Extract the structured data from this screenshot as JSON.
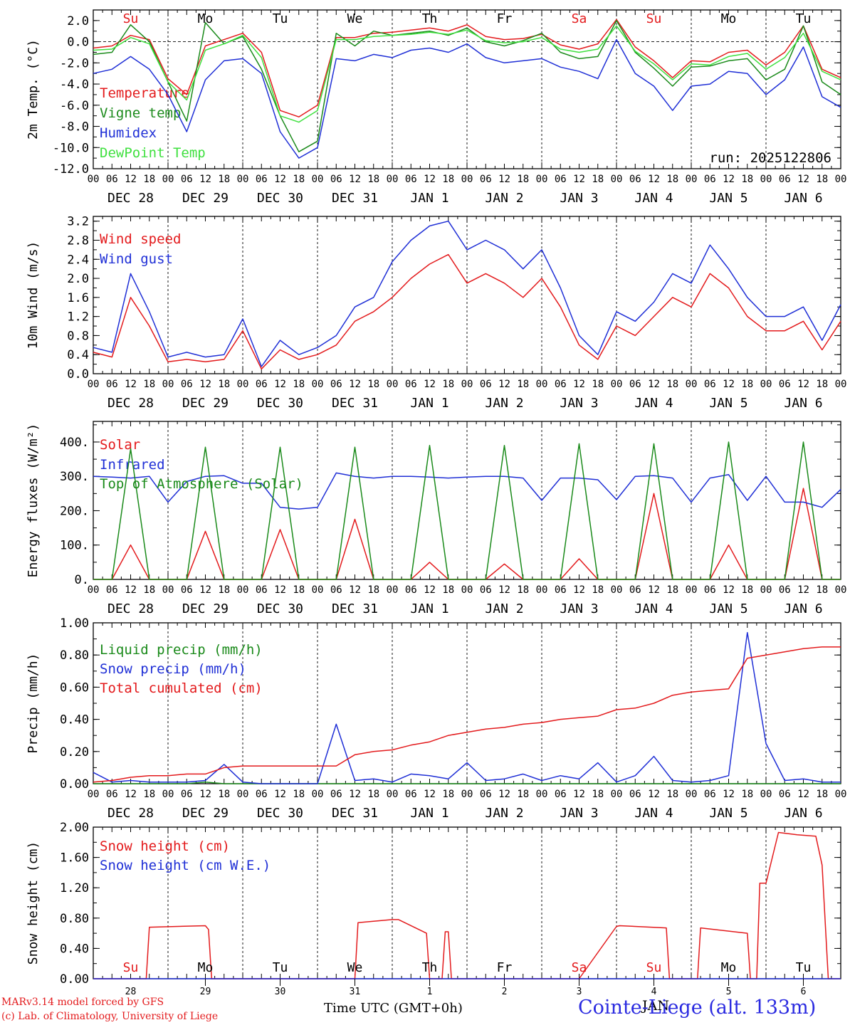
{
  "footer": {
    "credit_line1": "MARv3.14 model forced by GFS",
    "credit_line2": "(c) Lab. of Climatology, University of Liege",
    "xlabel": "Time UTC (GMT+0h)",
    "station": "Cointe-Liege (alt. 133m)",
    "bottom_month": "JAN"
  },
  "colors": {
    "red": "#e31a1c",
    "green": "#1a8a1a",
    "blue": "#1f2fd6",
    "lightgreen": "#3fe03f",
    "dark": "#000000"
  },
  "time_axis": {
    "hours_ticks": [
      "00",
      "06",
      "12",
      "18"
    ],
    "day_labels": [
      "DEC 28",
      "DEC 29",
      "DEC 30",
      "DEC 31",
      "JAN  1",
      "JAN  2",
      "JAN  3",
      "JAN  4",
      "JAN  5",
      "JAN  6"
    ],
    "weekdays": [
      "Su",
      "Mo",
      "Tu",
      "We",
      "Th",
      "Fr",
      "Sa",
      "Su",
      "Mo",
      "Tu"
    ],
    "weekday_red": [
      true,
      false,
      false,
      false,
      false,
      false,
      true,
      true,
      false,
      false
    ],
    "bottom_day_numbers": [
      "28",
      "29",
      "30",
      "31",
      "1",
      "2",
      "3",
      "4",
      "5",
      "6"
    ],
    "hours_span": 240
  },
  "chart_data": [
    {
      "type": "line",
      "ylabel": "2m Temp. (°C)",
      "ylim": [
        -12,
        3
      ],
      "yticks": [
        "2.0",
        "0.0",
        "-2.0",
        "-4.0",
        "-6.0",
        "-8.0",
        "-10.0",
        "-12.0"
      ],
      "annotation": "run: 2025122806",
      "x": [
        0,
        6,
        12,
        18,
        24,
        30,
        36,
        42,
        48,
        54,
        60,
        66,
        72,
        78,
        84,
        90,
        96,
        102,
        108,
        114,
        120,
        126,
        132,
        138,
        144,
        150,
        156,
        162,
        168,
        174,
        180,
        186,
        192,
        198,
        204,
        210,
        216,
        222,
        228,
        234,
        240
      ],
      "series": [
        {
          "name": "Temperature",
          "color": "#e31a1c",
          "values": [
            -0.6,
            -0.4,
            0.6,
            0.2,
            -3.5,
            -5,
            -0.4,
            0.2,
            0.8,
            -1,
            -6.5,
            -7.1,
            -6,
            0.4,
            0.4,
            0.8,
            0.9,
            1.1,
            1.3,
            1,
            1.6,
            0.5,
            0.2,
            0.3,
            0.7,
            -0.3,
            -0.7,
            -0.2,
            2.1,
            -0.5,
            -1.8,
            -3.4,
            -1.8,
            -1.9,
            -1,
            -0.8,
            -2.2,
            -1,
            1.5,
            -2.6,
            -3.4
          ]
        },
        {
          "name": "Vigne temp",
          "color": "#1a8a1a",
          "values": [
            -1.2,
            -1,
            1.6,
            0,
            -3.8,
            -7.5,
            1.8,
            -0.2,
            0.5,
            -2.6,
            -7,
            -10.4,
            -9.4,
            0.8,
            -0.4,
            1,
            0.6,
            0.8,
            1,
            0.6,
            1.3,
            0,
            -0.4,
            0.1,
            0.8,
            -1,
            -1.6,
            -1.4,
            2,
            -1,
            -2.5,
            -4.2,
            -2.4,
            -2.3,
            -1.8,
            -1.6,
            -3.6,
            -2.6,
            1.5,
            -3.8,
            -5
          ]
        },
        {
          "name": "Humidex",
          "color": "#1f2fd6",
          "values": [
            -3,
            -2.6,
            -1.4,
            -2.6,
            -5,
            -8.5,
            -3.6,
            -1.8,
            -1.6,
            -3,
            -8.5,
            -11,
            -10,
            -1.6,
            -1.8,
            -1.2,
            -1.5,
            -0.8,
            -0.6,
            -1,
            -0.2,
            -1.5,
            -2,
            -1.8,
            -1.6,
            -2.4,
            -2.8,
            -3.5,
            0.2,
            -3,
            -4.2,
            -6.5,
            -4.2,
            -4,
            -2.8,
            -3,
            -5,
            -3.6,
            -0.5,
            -5.2,
            -6.2
          ]
        },
        {
          "name": "DewPoint Temp",
          "color": "#3fe03f",
          "values": [
            -0.8,
            -0.7,
            0.4,
            -0.2,
            -3.8,
            -5.5,
            -0.8,
            -0.2,
            0.6,
            -1.5,
            -7,
            -7.6,
            -6.5,
            0.2,
            0.2,
            0.5,
            0.6,
            0.7,
            0.9,
            0.7,
            1.1,
            0.1,
            -0.1,
            0,
            0.4,
            -0.7,
            -1,
            -0.7,
            1.5,
            -0.9,
            -2.1,
            -3.6,
            -2.1,
            -2.2,
            -1.4,
            -1.1,
            -2.6,
            -1.5,
            0.8,
            -2.8,
            -3.6
          ]
        }
      ]
    },
    {
      "type": "line",
      "ylabel": "10m Wind (m/s)",
      "ylim": [
        0,
        3.3
      ],
      "yticks": [
        "3.2",
        "2.8",
        "2.4",
        "2.0",
        "1.6",
        "1.2",
        "0.8",
        "0.4",
        "0.0"
      ],
      "x": [
        0,
        6,
        12,
        18,
        24,
        30,
        36,
        42,
        48,
        54,
        60,
        66,
        72,
        78,
        84,
        90,
        96,
        102,
        108,
        114,
        120,
        126,
        132,
        138,
        144,
        150,
        156,
        162,
        168,
        174,
        180,
        186,
        192,
        198,
        204,
        210,
        216,
        222,
        228,
        234,
        240
      ],
      "series": [
        {
          "name": "Wind speed",
          "color": "#e31a1c",
          "values": [
            0.45,
            0.35,
            1.6,
            1,
            0.25,
            0.3,
            0.25,
            0.3,
            0.9,
            0.1,
            0.5,
            0.3,
            0.4,
            0.6,
            1.1,
            1.3,
            1.6,
            2,
            2.3,
            2.5,
            1.9,
            2.1,
            1.9,
            1.6,
            2,
            1.4,
            0.6,
            0.3,
            1,
            0.8,
            1.2,
            1.6,
            1.4,
            2.1,
            1.8,
            1.2,
            0.9,
            0.9,
            1.1,
            0.5,
            1.1
          ]
        },
        {
          "name": "Wind gust",
          "color": "#1f2fd6",
          "values": [
            0.55,
            0.45,
            2.1,
            1.3,
            0.35,
            0.45,
            0.35,
            0.4,
            1.15,
            0.15,
            0.7,
            0.4,
            0.55,
            0.8,
            1.4,
            1.6,
            2.35,
            2.8,
            3.1,
            3.2,
            2.6,
            2.8,
            2.6,
            2.2,
            2.6,
            1.8,
            0.8,
            0.4,
            1.3,
            1.1,
            1.5,
            2.1,
            1.9,
            2.7,
            2.2,
            1.6,
            1.2,
            1.2,
            1.4,
            0.7,
            1.45
          ]
        }
      ]
    },
    {
      "type": "line",
      "ylabel": "Energy fluxes (W/m²)",
      "ylim": [
        0,
        460
      ],
      "yticks": [
        "400.",
        "300.",
        "200.",
        "100.",
        "0."
      ],
      "x": [
        0,
        6,
        12,
        18,
        24,
        30,
        36,
        42,
        48,
        54,
        60,
        66,
        72,
        78,
        84,
        90,
        96,
        102,
        108,
        114,
        120,
        126,
        132,
        138,
        144,
        150,
        156,
        162,
        168,
        174,
        180,
        186,
        192,
        198,
        204,
        210,
        216,
        222,
        228,
        234,
        240
      ],
      "series": [
        {
          "name": "Solar",
          "color": "#e31a1c",
          "values": [
            0,
            0,
            100,
            0,
            0,
            0,
            140,
            0,
            0,
            0,
            145,
            0,
            0,
            0,
            175,
            0,
            0,
            0,
            50,
            0,
            0,
            0,
            45,
            0,
            0,
            0,
            60,
            0,
            0,
            0,
            250,
            0,
            0,
            0,
            100,
            0,
            0,
            0,
            265,
            0,
            0
          ]
        },
        {
          "name": "Infrared",
          "color": "#1f2fd6",
          "values": [
            300,
            298,
            295,
            300,
            225,
            285,
            300,
            302,
            280,
            280,
            210,
            205,
            210,
            310,
            300,
            295,
            300,
            300,
            298,
            295,
            298,
            300,
            300,
            295,
            230,
            295,
            295,
            290,
            232,
            300,
            302,
            295,
            225,
            295,
            305,
            230,
            300,
            225,
            225,
            210,
            262
          ]
        },
        {
          "name": "Top of Atmosphere (Solar)",
          "color": "#1a8a1a",
          "values": [
            0,
            0,
            380,
            0,
            0,
            0,
            385,
            0,
            0,
            0,
            385,
            0,
            0,
            0,
            385,
            0,
            0,
            0,
            390,
            0,
            0,
            0,
            390,
            0,
            0,
            0,
            395,
            0,
            0,
            0,
            395,
            0,
            0,
            0,
            400,
            0,
            0,
            0,
            400,
            0,
            0
          ]
        }
      ]
    },
    {
      "type": "line",
      "ylabel": "Precip (mm/h)",
      "ylim": [
        0,
        1.0
      ],
      "yticks": [
        "1.00",
        "0.80",
        "0.60",
        "0.40",
        "0.20",
        "0.00"
      ],
      "x": [
        0,
        6,
        12,
        18,
        24,
        30,
        36,
        42,
        48,
        54,
        60,
        66,
        72,
        78,
        84,
        90,
        96,
        102,
        108,
        114,
        120,
        126,
        132,
        138,
        144,
        150,
        156,
        162,
        168,
        174,
        180,
        186,
        192,
        198,
        204,
        210,
        216,
        222,
        228,
        234,
        240
      ],
      "series": [
        {
          "name": "Liquid precip (mm/h)",
          "color": "#1a8a1a",
          "values": [
            0,
            0,
            0,
            0,
            0,
            0,
            0.01,
            0,
            0,
            0,
            0,
            0,
            0,
            0,
            0,
            0,
            0,
            0,
            0,
            0,
            0,
            0,
            0,
            0,
            0,
            0,
            0,
            0,
            0,
            0,
            0,
            0,
            0,
            0,
            0,
            0,
            0,
            0,
            0,
            0,
            0
          ]
        },
        {
          "name": "Snow precip (mm/h)",
          "color": "#1f2fd6",
          "values": [
            0.07,
            0.01,
            0.02,
            0.01,
            0.01,
            0.01,
            0.02,
            0.12,
            0.01,
            0,
            0,
            0,
            0,
            0.37,
            0.02,
            0.03,
            0.01,
            0.06,
            0.05,
            0.03,
            0.13,
            0.02,
            0.03,
            0.06,
            0.02,
            0.05,
            0.03,
            0.13,
            0.01,
            0.05,
            0.17,
            0.02,
            0.01,
            0.02,
            0.05,
            0.94,
            0.25,
            0.02,
            0.03,
            0.01,
            0.01
          ]
        },
        {
          "name": "Total cumulated (cm)",
          "color": "#e31a1c",
          "values": [
            0.01,
            0.02,
            0.04,
            0.05,
            0.05,
            0.06,
            0.06,
            0.1,
            0.11,
            0.11,
            0.11,
            0.11,
            0.11,
            0.11,
            0.18,
            0.2,
            0.21,
            0.24,
            0.26,
            0.3,
            0.32,
            0.34,
            0.35,
            0.37,
            0.38,
            0.4,
            0.41,
            0.42,
            0.46,
            0.47,
            0.5,
            0.55,
            0.57,
            0.58,
            0.59,
            0.78,
            0.8,
            0.82,
            0.84,
            0.85,
            0.85
          ]
        }
      ]
    },
    {
      "type": "line",
      "ylabel": "Snow height (cm)",
      "ylim": [
        0,
        2.0
      ],
      "yticks": [
        "2.00",
        "1.60",
        "1.20",
        "0.80",
        "0.40",
        "0.00"
      ],
      "x": [
        0,
        17,
        18,
        36,
        37,
        38,
        84,
        85,
        96,
        98,
        107,
        108,
        112,
        113,
        114,
        115,
        116,
        117,
        120,
        156,
        168,
        169,
        184,
        185,
        194,
        195,
        210,
        211,
        213,
        214,
        216,
        220,
        226,
        232,
        234,
        236,
        240
      ],
      "series": [
        {
          "name": "Snow height (cm)",
          "color": "#e31a1c",
          "values": [
            0,
            0,
            0.68,
            0.7,
            0.65,
            0,
            0,
            0.74,
            0.78,
            0.78,
            0.6,
            0,
            0,
            0.62,
            0.62,
            0,
            0,
            0,
            0,
            0,
            0.69,
            0.7,
            0.67,
            0,
            0,
            0.67,
            0.6,
            0,
            0,
            1.26,
            1.26,
            1.93,
            1.9,
            1.88,
            1.5,
            0,
            0
          ]
        },
        {
          "name": "Snow height (cm W.E.)",
          "color": "#1f2fd6",
          "values": [
            0,
            0,
            0,
            0,
            0,
            0,
            0,
            0,
            0,
            0,
            0,
            0,
            0,
            0,
            0,
            0,
            0,
            0,
            0,
            0,
            0,
            0,
            0,
            0,
            0,
            0,
            0,
            0,
            0,
            0,
            0,
            0,
            0,
            0,
            0,
            0,
            0
          ]
        }
      ]
    }
  ]
}
